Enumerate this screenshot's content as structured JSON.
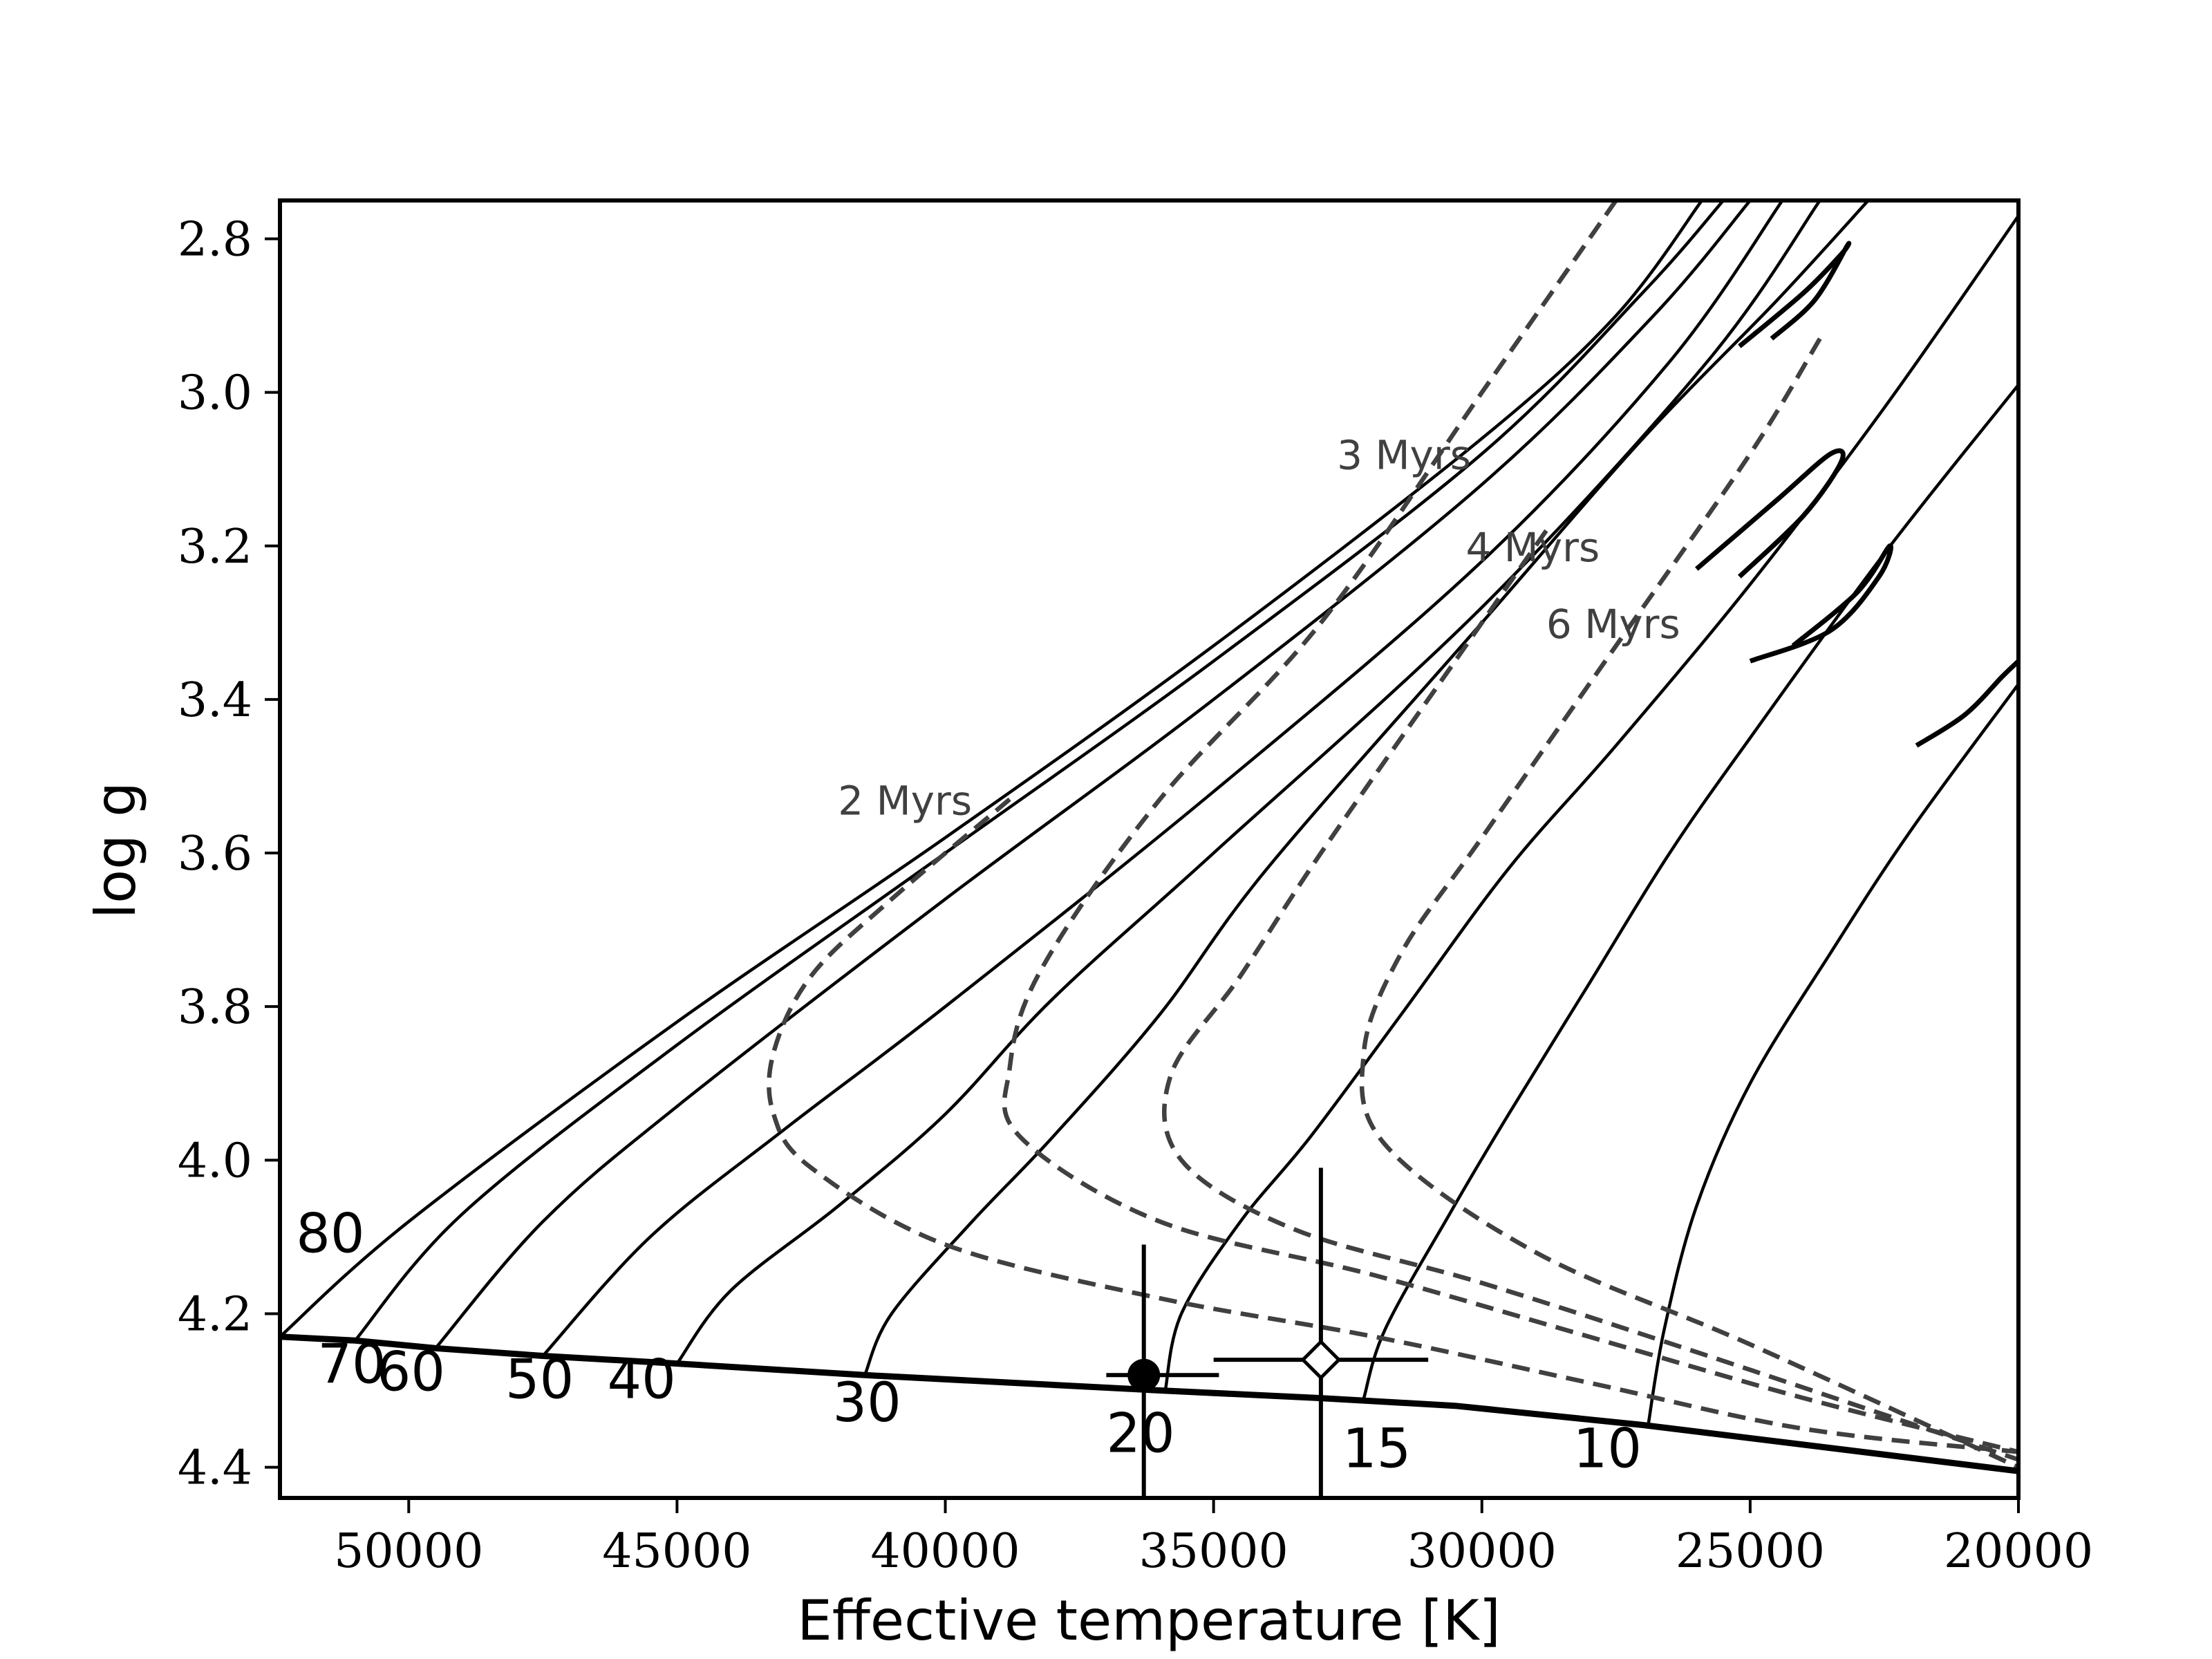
{
  "chart_data": {
    "type": "line",
    "title": "",
    "xlabel": "Effective temperature [K]",
    "ylabel": "log g",
    "xlim": [
      52400,
      20000
    ],
    "ylim": [
      4.44,
      2.75
    ],
    "x_ticks": [
      {
        "value": 50000,
        "label": "50000"
      },
      {
        "value": 45000,
        "label": "45000"
      },
      {
        "value": 40000,
        "label": "40000"
      },
      {
        "value": 35000,
        "label": "35000"
      },
      {
        "value": 30000,
        "label": "30000"
      },
      {
        "value": 25000,
        "label": "25000"
      },
      {
        "value": 20000,
        "label": "20000"
      }
    ],
    "y_ticks": [
      {
        "value": 2.8,
        "label": "2.8"
      },
      {
        "value": 3.0,
        "label": "3.0"
      },
      {
        "value": 3.2,
        "label": "3.2"
      },
      {
        "value": 3.4,
        "label": "3.4"
      },
      {
        "value": 3.6,
        "label": "3.6"
      },
      {
        "value": 3.8,
        "label": "3.8"
      },
      {
        "value": 4.0,
        "label": "4.0"
      },
      {
        "value": 4.2,
        "label": "4.2"
      },
      {
        "value": 4.4,
        "label": "4.4"
      }
    ],
    "zams": [
      [
        52400,
        4.23
      ],
      [
        51000,
        4.235
      ],
      [
        49500,
        4.245
      ],
      [
        47500,
        4.255
      ],
      [
        45000,
        4.265
      ],
      [
        41500,
        4.28
      ],
      [
        36000,
        4.3
      ],
      [
        33000,
        4.31
      ],
      [
        30500,
        4.32
      ],
      [
        27000,
        4.345
      ],
      [
        20000,
        4.405
      ]
    ],
    "mass_tracks": [
      {
        "name": "80",
        "points": [
          [
            52400,
            4.23
          ],
          [
            50000,
            4.08
          ],
          [
            45000,
            3.82
          ],
          [
            40000,
            3.58
          ],
          [
            35000,
            3.33
          ],
          [
            30000,
            3.06
          ],
          [
            27500,
            2.9
          ],
          [
            25900,
            2.75
          ]
        ]
      },
      {
        "name": "70",
        "points": [
          [
            51000,
            4.235
          ],
          [
            49000,
            4.07
          ],
          [
            45000,
            3.85
          ],
          [
            40000,
            3.6
          ],
          [
            35000,
            3.35
          ],
          [
            30000,
            3.08
          ],
          [
            27000,
            2.87
          ],
          [
            25500,
            2.75
          ]
        ]
      },
      {
        "name": "60",
        "points": [
          [
            49500,
            4.245
          ],
          [
            47500,
            4.08
          ],
          [
            45000,
            3.93
          ],
          [
            40000,
            3.66
          ],
          [
            35000,
            3.4
          ],
          [
            30000,
            3.12
          ],
          [
            26800,
            2.9
          ],
          [
            25000,
            2.75
          ]
        ]
      },
      {
        "name": "50",
        "points": [
          [
            47500,
            4.255
          ],
          [
            45500,
            4.1
          ],
          [
            43000,
            3.96
          ],
          [
            40000,
            3.8
          ],
          [
            35000,
            3.52
          ],
          [
            30000,
            3.22
          ],
          [
            26500,
            2.96
          ],
          [
            24400,
            2.75
          ]
        ]
      },
      {
        "name": "40",
        "points": [
          [
            45000,
            4.265
          ],
          [
            44000,
            4.17
          ],
          [
            42000,
            4.06
          ],
          [
            40000,
            3.94
          ],
          [
            38000,
            3.79
          ],
          [
            35000,
            3.6
          ],
          [
            30000,
            3.28
          ],
          [
            25800,
            2.96
          ],
          [
            23700,
            2.75
          ]
        ]
      },
      {
        "name": "30",
        "points": [
          [
            41500,
            4.28
          ],
          [
            41000,
            4.2
          ],
          [
            39500,
            4.08
          ],
          [
            38000,
            3.97
          ],
          [
            36000,
            3.81
          ],
          [
            34000,
            3.62
          ],
          [
            30000,
            3.3
          ],
          [
            27000,
            3.06
          ],
          [
            24500,
            2.88
          ],
          [
            22800,
            2.75
          ]
        ]
      },
      {
        "name": "20",
        "points": [
          [
            35900,
            4.3
          ],
          [
            35600,
            4.2
          ],
          [
            34500,
            4.08
          ],
          [
            33200,
            3.97
          ],
          [
            31500,
            3.81
          ],
          [
            29500,
            3.62
          ],
          [
            27500,
            3.46
          ],
          [
            25000,
            3.25
          ],
          [
            22500,
            3.02
          ],
          [
            20000,
            2.77
          ]
        ]
      },
      {
        "name": "15",
        "points": [
          [
            32200,
            4.31
          ],
          [
            31800,
            4.22
          ],
          [
            30600,
            4.07
          ],
          [
            29500,
            3.94
          ],
          [
            28000,
            3.77
          ],
          [
            26500,
            3.6
          ],
          [
            25000,
            3.45
          ],
          [
            22500,
            3.21
          ],
          [
            20000,
            2.99
          ]
        ]
      },
      {
        "name": "10",
        "points": [
          [
            26900,
            4.345
          ],
          [
            26600,
            4.22
          ],
          [
            26000,
            4.06
          ],
          [
            25000,
            3.9
          ],
          [
            23500,
            3.73
          ],
          [
            22000,
            3.57
          ],
          [
            20000,
            3.38
          ]
        ]
      }
    ],
    "blue_loops": [
      {
        "points": [
          [
            25200,
            2.94
          ],
          [
            24000,
            2.87
          ],
          [
            23300,
            2.82
          ],
          [
            23200,
            2.81
          ],
          [
            23800,
            2.88
          ],
          [
            24600,
            2.93
          ]
        ]
      },
      {
        "points": [
          [
            26000,
            3.23
          ],
          [
            24500,
            3.14
          ],
          [
            23500,
            3.08
          ],
          [
            23300,
            3.09
          ],
          [
            24000,
            3.16
          ],
          [
            25200,
            3.24
          ]
        ]
      },
      {
        "points": [
          [
            25000,
            3.35
          ],
          [
            23500,
            3.31
          ],
          [
            22600,
            3.24
          ],
          [
            22400,
            3.2
          ],
          [
            23000,
            3.26
          ],
          [
            24200,
            3.33
          ]
        ]
      },
      {
        "points": [
          [
            21900,
            3.46
          ],
          [
            21000,
            3.42
          ],
          [
            20300,
            3.37
          ],
          [
            20000,
            3.35
          ]
        ]
      }
    ],
    "isochrones": [
      {
        "name": "2 Myrs",
        "points": [
          [
            38800,
            3.53
          ],
          [
            41000,
            3.66
          ],
          [
            42500,
            3.76
          ],
          [
            43200,
            3.86
          ],
          [
            43200,
            3.94
          ],
          [
            42500,
            4.01
          ],
          [
            40000,
            4.11
          ],
          [
            36000,
            4.18
          ],
          [
            32000,
            4.23
          ],
          [
            28000,
            4.29
          ],
          [
            24000,
            4.35
          ],
          [
            20000,
            4.38
          ]
        ]
      },
      {
        "name": "3 Myrs",
        "points": [
          [
            27500,
            2.75
          ],
          [
            30000,
            3.0
          ],
          [
            33000,
            3.3
          ],
          [
            36000,
            3.53
          ],
          [
            38200,
            3.75
          ],
          [
            38800,
            3.88
          ],
          [
            38600,
            3.97
          ],
          [
            36000,
            4.08
          ],
          [
            32000,
            4.15
          ],
          [
            28000,
            4.23
          ],
          [
            24000,
            4.31
          ],
          [
            20000,
            4.38
          ]
        ]
      },
      {
        "name": "4 Myrs",
        "points": [
          [
            28800,
            3.18
          ],
          [
            30500,
            3.35
          ],
          [
            33000,
            3.6
          ],
          [
            34500,
            3.76
          ],
          [
            35800,
            3.89
          ],
          [
            35600,
            4.0
          ],
          [
            33500,
            4.09
          ],
          [
            30000,
            4.16
          ],
          [
            26000,
            4.25
          ],
          [
            20000,
            4.39
          ]
        ]
      },
      {
        "name": "6 Myrs",
        "points": [
          [
            23700,
            2.93
          ],
          [
            25000,
            3.08
          ],
          [
            27500,
            3.33
          ],
          [
            30000,
            3.58
          ],
          [
            31500,
            3.73
          ],
          [
            32200,
            3.86
          ],
          [
            31800,
            3.98
          ],
          [
            29000,
            4.12
          ],
          [
            25000,
            4.24
          ],
          [
            20000,
            4.4
          ]
        ]
      }
    ],
    "mass_labels": [
      {
        "text": "80",
        "teff": 52100,
        "logg": 4.12
      },
      {
        "text": "70",
        "teff": 51700,
        "logg": 4.29
      },
      {
        "text": "60",
        "teff": 50600,
        "logg": 4.3
      },
      {
        "text": "50",
        "teff": 48200,
        "logg": 4.31
      },
      {
        "text": "40",
        "teff": 46300,
        "logg": 4.31
      },
      {
        "text": "30",
        "teff": 42100,
        "logg": 4.34
      },
      {
        "text": "20",
        "teff": 37000,
        "logg": 4.38
      },
      {
        "text": "15",
        "teff": 32600,
        "logg": 4.4
      },
      {
        "text": "10",
        "teff": 28300,
        "logg": 4.4
      }
    ],
    "isochrone_labels": [
      {
        "text": "2 Myrs",
        "teff": 42000,
        "logg": 3.55
      },
      {
        "text": "3 Myrs",
        "teff": 32700,
        "logg": 3.1
      },
      {
        "text": "4 Myrs",
        "teff": 30300,
        "logg": 3.22
      },
      {
        "text": "6 Myrs",
        "teff": 28800,
        "logg": 3.32
      }
    ],
    "points": [
      {
        "name": "filled-circle",
        "marker": "circle",
        "teff": 36300,
        "logg": 4.28,
        "teff_err_low": 700,
        "teff_err_high": 1400,
        "logg_err_low": 0.17,
        "logg_err_high": 0.17
      },
      {
        "name": "open-diamond",
        "marker": "diamond",
        "teff": 33000,
        "logg": 4.26,
        "teff_err_low": 2000,
        "teff_err_high": 2000,
        "logg_err_low": 0.25,
        "logg_err_high": 0.25
      }
    ]
  }
}
